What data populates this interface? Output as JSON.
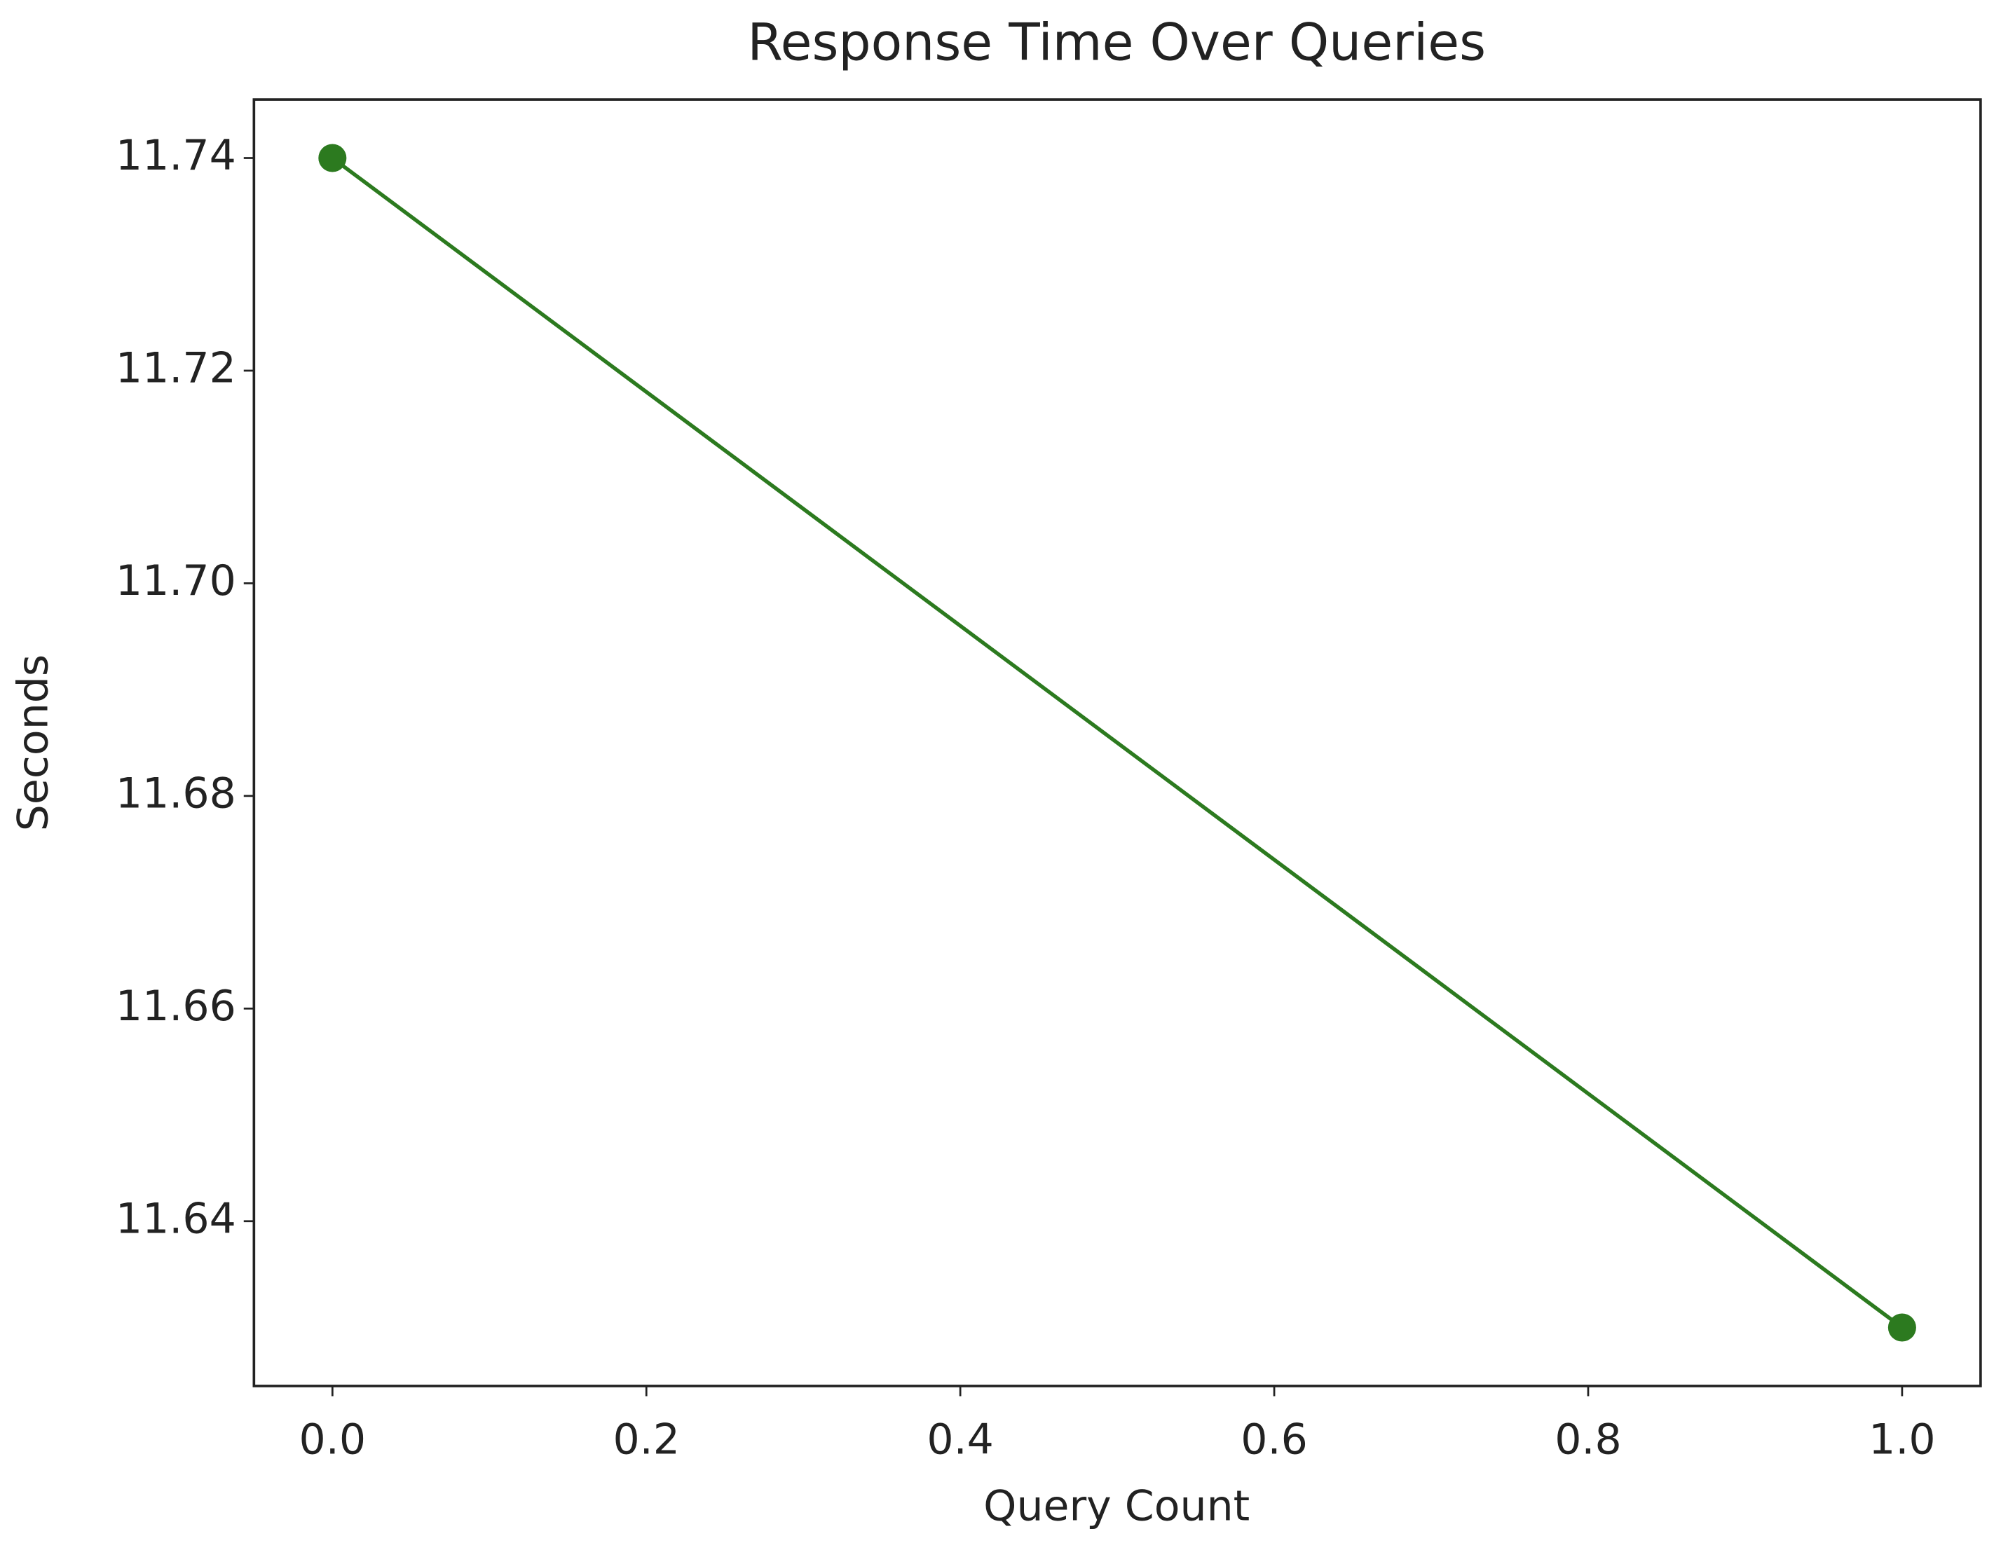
{
  "chart_data": {
    "type": "line",
    "title": "Response Time Over Queries",
    "x_label": "Query Count",
    "y_label": "Seconds",
    "x": [
      0,
      1
    ],
    "values": [
      11.74,
      11.63
    ],
    "color": "#2c7a1f",
    "xlim": [
      -0.05,
      1.05
    ],
    "xticks": [
      {
        "value": 0,
        "label": "0.0"
      },
      0.2,
      0.4,
      0.6,
      0.8,
      {
        "value": 1,
        "label": "1.0"
      }
    ],
    "ylim": [
      11.6245,
      11.7455
    ],
    "yticks": [
      11.64,
      11.66,
      11.68,
      {
        "value": 11.7,
        "label": "11.70"
      },
      11.72,
      11.74
    ],
    "grid": false
  }
}
